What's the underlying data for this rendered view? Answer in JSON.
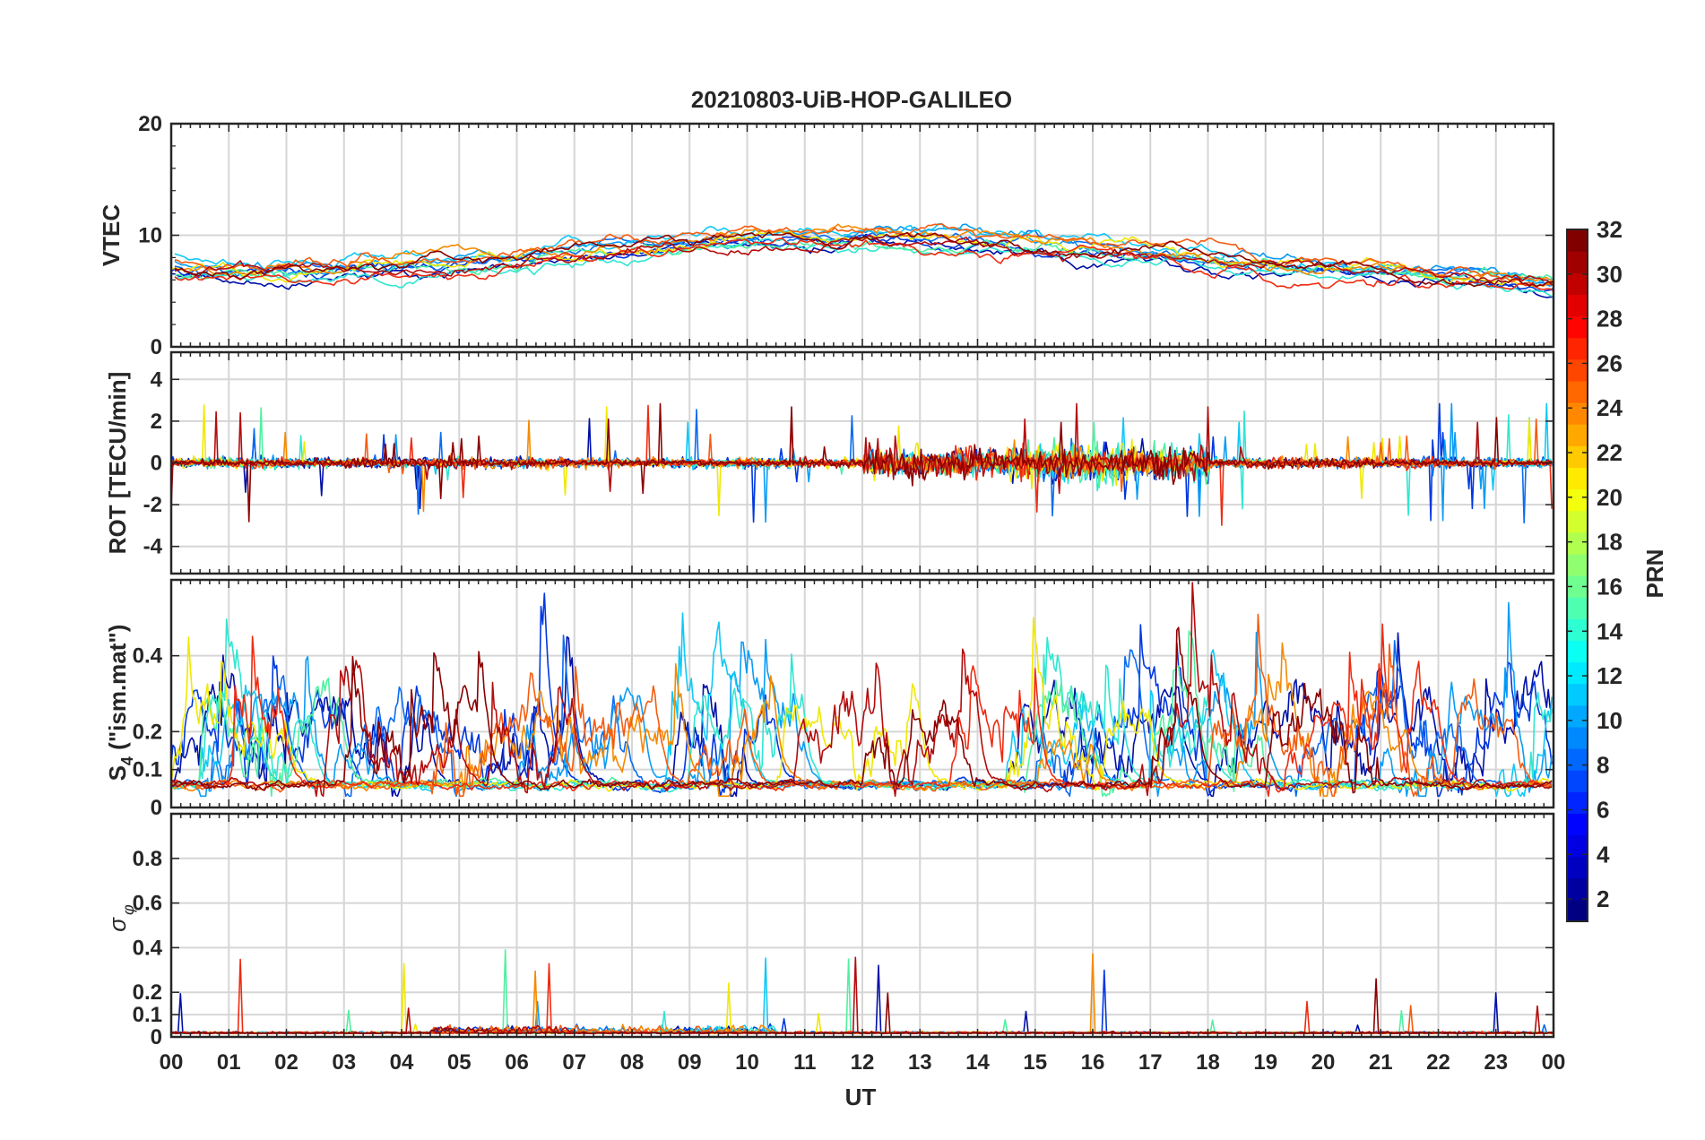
{
  "figure": {
    "title": "20210803-UiB-HOP-GALILEO",
    "xlabel": "UT"
  },
  "chart_data": [
    {
      "type": "line",
      "id": "vtec",
      "ylabel": "VTEC",
      "ylim": [
        0,
        20
      ],
      "yticks": [
        "0",
        "10",
        "20"
      ],
      "grid": true
    },
    {
      "type": "line",
      "id": "rot",
      "ylabel": "ROT [TECU/min]",
      "ylim": [
        -5.3,
        5.3
      ],
      "yticks": [
        "-4",
        "-2",
        "0",
        "2",
        "4"
      ],
      "grid": true
    },
    {
      "type": "line",
      "id": "s4",
      "ylabel_main": "S",
      "ylabel_sub": "4",
      "ylabel_rest": " (\"ism.mat\")",
      "ylim": [
        0,
        0.6
      ],
      "yticks": [
        "0",
        "0.1",
        "0.2",
        "0.4"
      ],
      "grid": true
    },
    {
      "type": "line",
      "id": "sigma",
      "ylabel_symbol": "σ",
      "ylabel_sub": "φ",
      "ylim": [
        0,
        1
      ],
      "yticks": [
        "0",
        "0.1",
        "0.2",
        "0.4",
        "0.6",
        "0.8"
      ],
      "grid": true
    }
  ],
  "x_axis": {
    "range_hours": [
      0,
      24
    ],
    "tick_labels": [
      "00",
      "01",
      "02",
      "03",
      "04",
      "05",
      "06",
      "07",
      "08",
      "09",
      "10",
      "11",
      "12",
      "13",
      "14",
      "15",
      "16",
      "17",
      "18",
      "19",
      "20",
      "21",
      "22",
      "23",
      "00"
    ]
  },
  "colorbar": {
    "label": "PRN",
    "range": [
      1,
      32
    ],
    "tick_labels": [
      "2",
      "4",
      "6",
      "8",
      "10",
      "12",
      "14",
      "16",
      "18",
      "20",
      "22",
      "24",
      "26",
      "28",
      "30",
      "32"
    ]
  },
  "series": [
    {
      "name": "PRN 2",
      "prn": 2,
      "color": "#0010a8"
    },
    {
      "name": "PRN 4",
      "prn": 4,
      "color": "#0038e0"
    },
    {
      "name": "PRN 7",
      "prn": 7,
      "color": "#0a6cf0"
    },
    {
      "name": "PRN 10",
      "prn": 10,
      "color": "#0a9cf5"
    },
    {
      "name": "PRN 12",
      "prn": 12,
      "color": "#10c8f5"
    },
    {
      "name": "PRN 13",
      "prn": 13,
      "color": "#30e6d0"
    },
    {
      "name": "PRN 15",
      "prn": 15,
      "color": "#50f0a0"
    },
    {
      "name": "PRN 20",
      "prn": 20,
      "color": "#f0e800"
    },
    {
      "name": "PRN 23",
      "prn": 23,
      "color": "#f58a00"
    },
    {
      "name": "PRN 25",
      "prn": 25,
      "color": "#f55c10"
    },
    {
      "name": "PRN 27",
      "prn": 27,
      "color": "#ef2b10"
    },
    {
      "name": "PRN 30",
      "prn": 30,
      "color": "#b40c0c"
    },
    {
      "name": "PRN 32",
      "prn": 32,
      "color": "#8a0000"
    }
  ]
}
